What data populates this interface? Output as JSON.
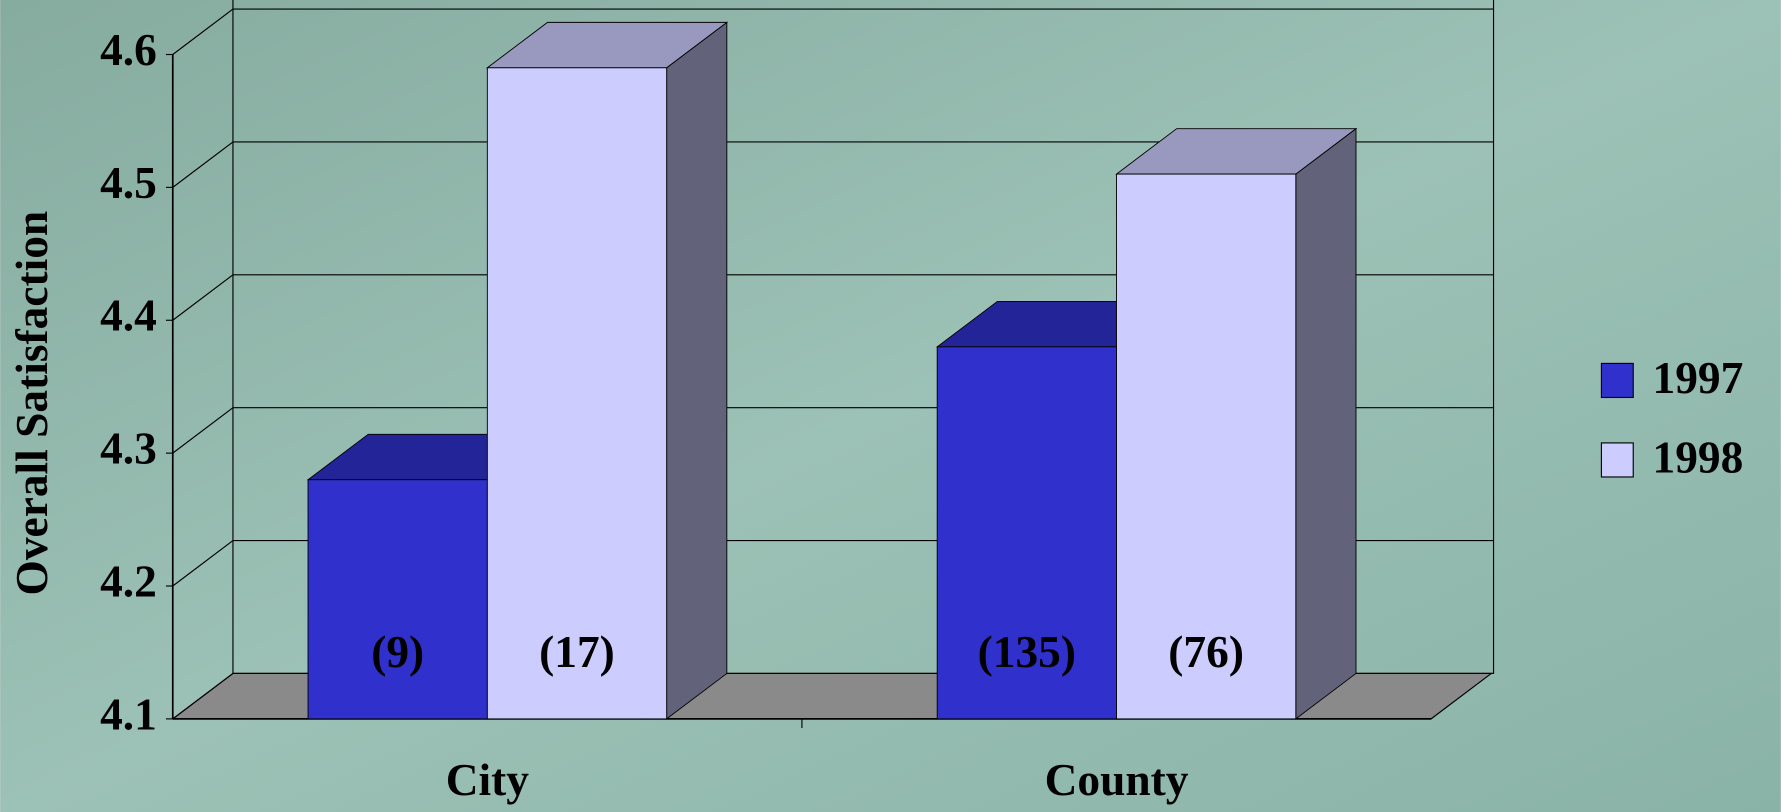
{
  "chart_data": {
    "type": "bar3d",
    "y_label": "Overall Satisfaction",
    "categories": [
      "City",
      "County"
    ],
    "series": [
      {
        "name": "1997",
        "color": "#3030cc",
        "values": [
          4.28,
          4.38
        ],
        "value_labels": [
          "(9)",
          "(135)"
        ]
      },
      {
        "name": "1998",
        "color": "#ccccff",
        "values": [
          4.59,
          4.51
        ],
        "value_labels": [
          "(17)",
          "(76)"
        ]
      }
    ],
    "ylim": [
      4.1,
      4.6
    ],
    "yticks": [
      4.1,
      4.2,
      4.3,
      4.4,
      4.5,
      4.6
    ],
    "grid": true,
    "legend": "right"
  }
}
